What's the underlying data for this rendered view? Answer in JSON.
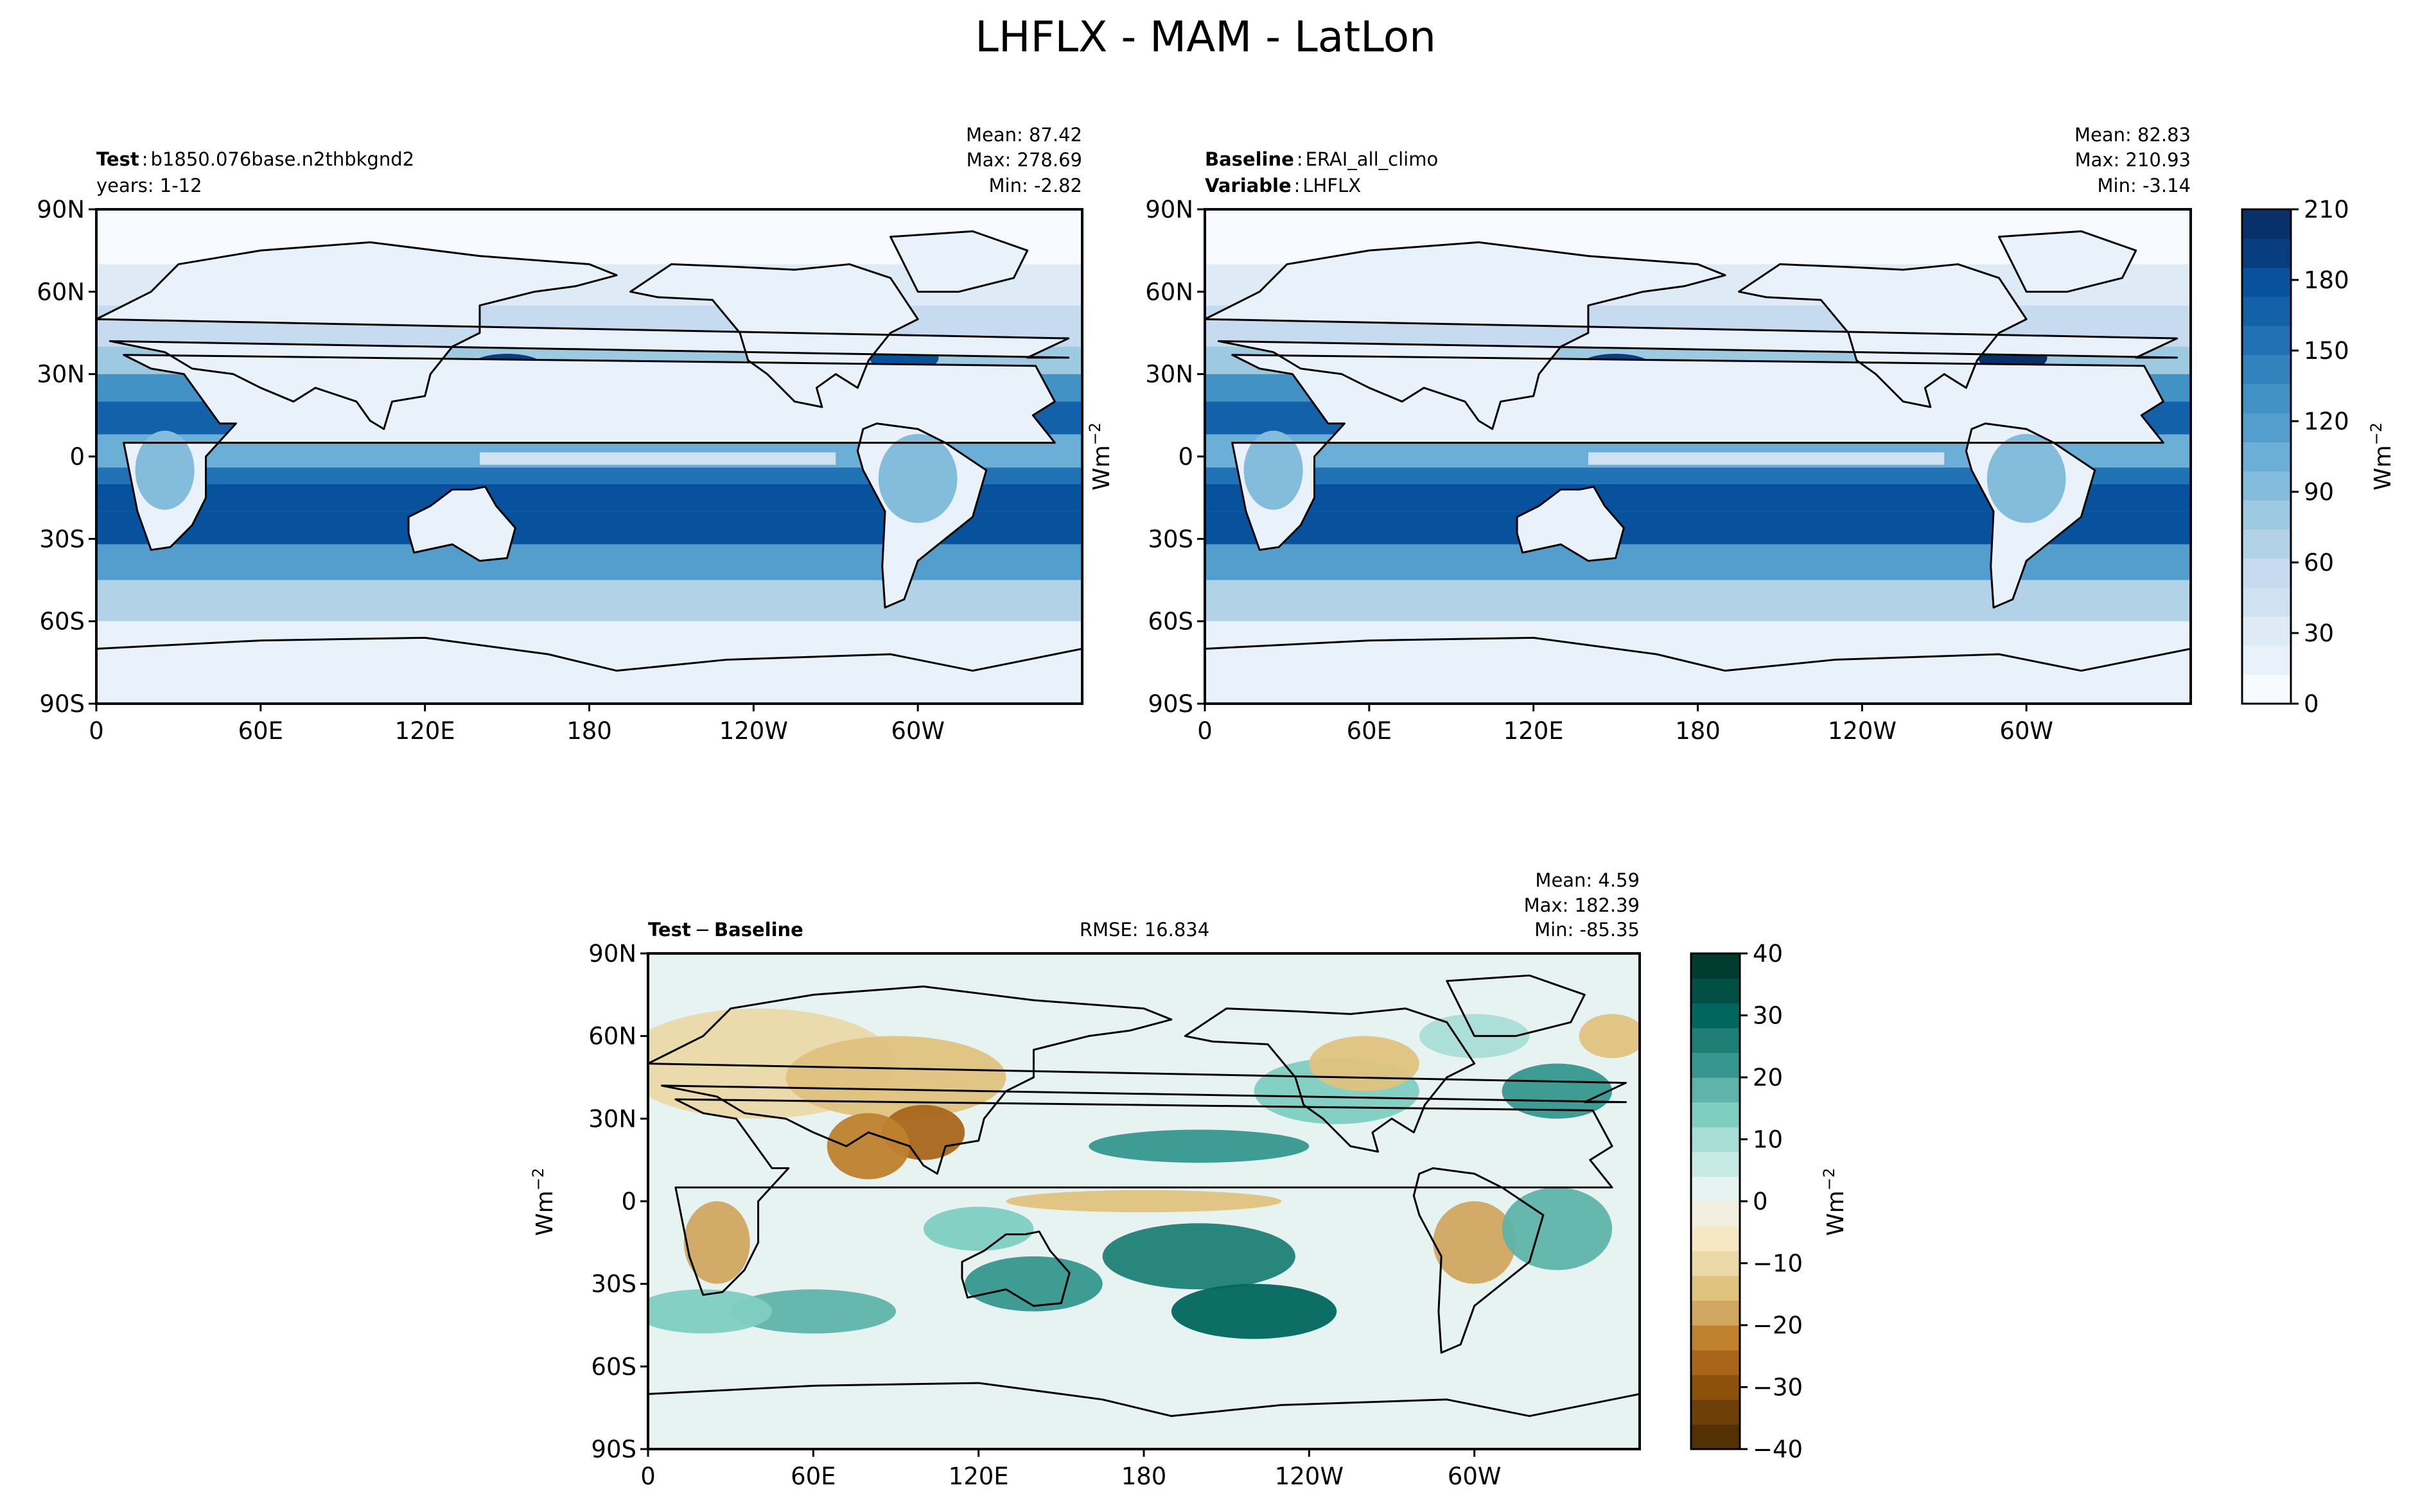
{
  "title": "LHFLX - MAM - LatLon",
  "lat_ticks": [
    "90N",
    "60N",
    "30N",
    "0",
    "30S",
    "60S",
    "90S"
  ],
  "lon_ticks": [
    "0",
    "60E",
    "120E",
    "180",
    "120W",
    "60W"
  ],
  "unit_label": "Wm",
  "unit_exp": "−2",
  "panels": {
    "test": {
      "label_bold": "Test",
      "label_value": "b1850.076base.n2thbkgnd2",
      "line2": "years: 1-12",
      "stats": [
        "Mean: 87.42",
        "Max: 278.69",
        "Min: -2.82"
      ]
    },
    "baseline": {
      "label_bold": "Baseline",
      "label_value": "ERAI_all_climo",
      "var_bold": "Variable",
      "var_value": "LHFLX",
      "stats": [
        "Mean: 82.83",
        "Max: 210.93",
        "Min: -3.14"
      ]
    },
    "diff": {
      "label_bold": "Test",
      "minus": "−",
      "label_bold2": "Baseline",
      "rmse": "RMSE: 16.834",
      "stats": [
        "Mean:  4.59",
        "Max: 182.39",
        "Min: -85.35"
      ]
    }
  },
  "colors": {
    "blues": [
      "#f7fbff",
      "#e9f2fb",
      "#deebf7",
      "#d0e2f2",
      "#c6dbef",
      "#b1d2e7",
      "#9ecae1",
      "#84bcdb",
      "#6baed6",
      "#539ecd",
      "#4292c6",
      "#3282be",
      "#2171b5",
      "#1361a8",
      "#08519c",
      "#083d7f",
      "#08306b"
    ],
    "diverging": [
      "#543005",
      "#6f3f0a",
      "#8c510a",
      "#a9661a",
      "#bf812d",
      "#d1a660",
      "#dfc27d",
      "#ead8a8",
      "#f6e8c3",
      "#f3efe0",
      "#e6f3f1",
      "#c7eae5",
      "#a8ddd5",
      "#80cdc1",
      "#5fb3a9",
      "#35978f",
      "#1f7f76",
      "#01665e",
      "#014f45",
      "#003c30"
    ]
  },
  "chart_data": [
    {
      "type": "heatmap",
      "panel": "test",
      "projection": "latlon",
      "xlim": [
        0,
        360
      ],
      "ylim": [
        -90,
        90
      ],
      "colorbar": false
    },
    {
      "type": "heatmap",
      "panel": "baseline",
      "projection": "latlon",
      "xlim": [
        0,
        360
      ],
      "ylim": [
        -90,
        90
      ],
      "colorbar": {
        "levels": [
          0,
          30,
          60,
          90,
          120,
          150,
          180,
          210
        ],
        "tick_labels": [
          "0",
          "30",
          "60",
          "90",
          "120",
          "150",
          "180",
          "210"
        ],
        "colormap": "blues"
      }
    },
    {
      "type": "heatmap",
      "panel": "diff",
      "projection": "latlon",
      "xlim": [
        0,
        360
      ],
      "ylim": [
        -90,
        90
      ],
      "colorbar": {
        "levels": [
          -40,
          -30,
          -20,
          -10,
          0,
          10,
          20,
          30,
          40
        ],
        "tick_labels": [
          "−40",
          "−30",
          "−20",
          "−10",
          "0",
          "10",
          "20",
          "30",
          "40"
        ],
        "colormap": "diverging"
      }
    }
  ]
}
